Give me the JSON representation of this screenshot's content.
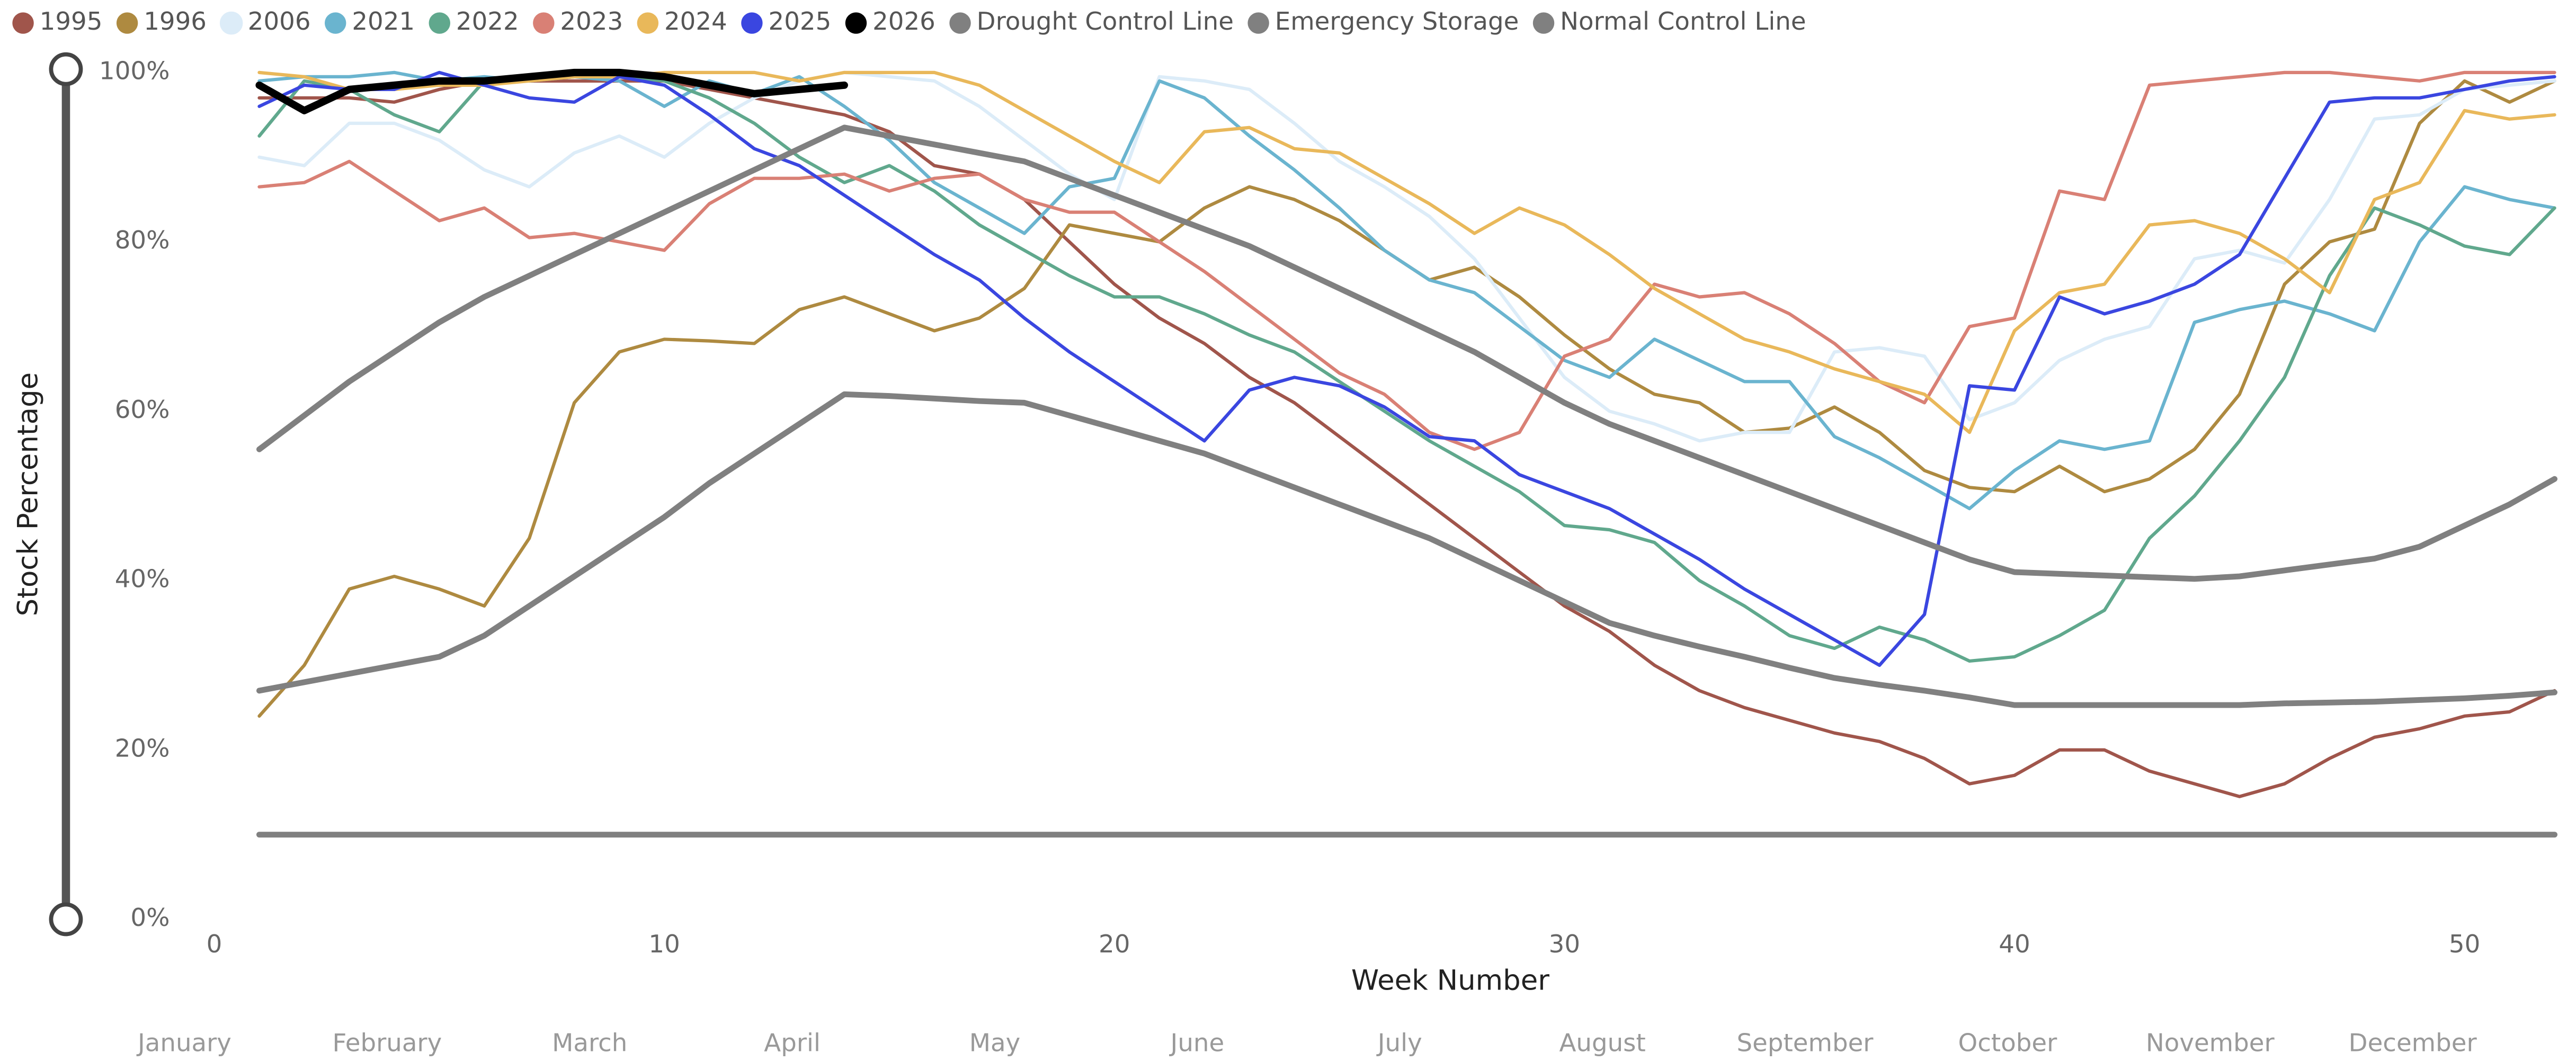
{
  "chart_data": {
    "type": "line",
    "y_axis_title": "Stock Percentage",
    "x_axis_title": "Week Number",
    "x": [
      1,
      2,
      3,
      4,
      5,
      6,
      7,
      8,
      9,
      10,
      11,
      12,
      13,
      14,
      15,
      16,
      17,
      18,
      19,
      20,
      21,
      22,
      23,
      24,
      25,
      26,
      27,
      28,
      29,
      30,
      31,
      32,
      33,
      34,
      35,
      36,
      37,
      38,
      39,
      40,
      41,
      42,
      43,
      44,
      45,
      46,
      47,
      48,
      49,
      50,
      51,
      52
    ],
    "xlim": [
      0,
      52
    ],
    "xticks": [
      0,
      10,
      20,
      30,
      40,
      50
    ],
    "ylim": [
      0,
      100
    ],
    "yticks": [
      {
        "value": 0,
        "label": "0%"
      },
      {
        "value": 20,
        "label": "20%"
      },
      {
        "value": 40,
        "label": "40%"
      },
      {
        "value": 60,
        "label": "60%"
      },
      {
        "value": 80,
        "label": "80%"
      },
      {
        "value": 100,
        "label": "100%"
      }
    ],
    "grid": false,
    "legend_position": "top",
    "month_labels": [
      "January",
      "February",
      "March",
      "April",
      "May",
      "June",
      "July",
      "August",
      "September",
      "October",
      "November",
      "December"
    ],
    "series": [
      {
        "name": "1995",
        "color": "#a0554b",
        "values": [
          97,
          97,
          97,
          96.5,
          98,
          99,
          99,
          99,
          99,
          99,
          98,
          97,
          96,
          95,
          93,
          89,
          88,
          85,
          80,
          75,
          71,
          68,
          64,
          61,
          57,
          53,
          49,
          45,
          41,
          37,
          34,
          30,
          27,
          25,
          23.5,
          22,
          21,
          19,
          16,
          17,
          20,
          20,
          17.5,
          16,
          14.5,
          16,
          19,
          21.5,
          22.5,
          24,
          24.5,
          27
        ]
      },
      {
        "name": "1996",
        "color": "#ae8a40",
        "values": [
          24,
          30,
          39,
          40.5,
          39,
          37,
          45,
          61,
          67,
          68.5,
          68.3,
          68,
          72,
          73.5,
          71.5,
          69.5,
          71,
          74.5,
          82,
          81,
          80,
          84,
          86.5,
          85,
          82.5,
          79,
          75.5,
          77,
          73.5,
          69,
          65,
          62,
          61,
          57.5,
          58,
          60.5,
          57.5,
          53,
          51,
          50.5,
          53.5,
          50.5,
          52,
          55.5,
          62,
          75,
          80,
          81.5,
          94,
          99,
          96.5,
          99
        ]
      },
      {
        "name": "2006",
        "color": "#dcecf8",
        "values": [
          90,
          89,
          94,
          94,
          92,
          88.5,
          86.5,
          90.5,
          92.5,
          90,
          94,
          97,
          99,
          100,
          99.5,
          99,
          96,
          92,
          88,
          85,
          99.5,
          99,
          98,
          94,
          89.5,
          86.5,
          83,
          78,
          71,
          64,
          60,
          58.5,
          56.5,
          57.5,
          57.5,
          67,
          67.5,
          66.5,
          59,
          61,
          66,
          68.5,
          70,
          78,
          79,
          77.5,
          85,
          94.5,
          95,
          98,
          98.5,
          99
        ]
      },
      {
        "name": "2021",
        "color": "#6ab4cf",
        "values": [
          99,
          99.5,
          99.5,
          100,
          99,
          99.5,
          99,
          99.5,
          99,
          96,
          99,
          97.5,
          99.5,
          96,
          92,
          87,
          84,
          81,
          86.5,
          87.5,
          99,
          97,
          92.5,
          88.5,
          84,
          79,
          75.5,
          74,
          70,
          66,
          64,
          68.5,
          66,
          63.5,
          63.5,
          57,
          54.5,
          51.5,
          48.5,
          53,
          56.5,
          55.5,
          56.5,
          70.5,
          72,
          73,
          71.5,
          69.5,
          80,
          86.5,
          85,
          84
        ]
      },
      {
        "name": "2022",
        "color": "#60a88d",
        "values": [
          92.5,
          99,
          98,
          95,
          93,
          99,
          99,
          99.5,
          99.5,
          99,
          97,
          94,
          90,
          87,
          89,
          86,
          82,
          79,
          76,
          73.5,
          73.5,
          71.5,
          69,
          67,
          63.5,
          60,
          56.5,
          53.5,
          50.5,
          46.5,
          46,
          44.5,
          40,
          37,
          33.5,
          32,
          34.5,
          33,
          30.5,
          31,
          33.5,
          36.5,
          45,
          50,
          56.5,
          64,
          76,
          84,
          82,
          79.5,
          78.5,
          84
        ]
      },
      {
        "name": "2023",
        "color": "#d98075",
        "values": [
          86.5,
          87,
          89.5,
          86,
          82.5,
          84,
          80.5,
          81,
          80,
          79,
          84.5,
          87.5,
          87.5,
          88,
          86,
          87.5,
          88,
          85,
          83.5,
          83.5,
          80,
          76.5,
          72.5,
          68.5,
          64.5,
          62,
          57.5,
          55.5,
          57.5,
          66.5,
          68.5,
          75,
          73.5,
          74,
          71.5,
          68,
          63.5,
          61,
          70,
          71,
          86,
          85,
          98.5,
          99,
          99.5,
          100,
          100,
          99.5,
          99,
          100,
          100,
          100
        ]
      },
      {
        "name": "2024",
        "color": "#e9b85a",
        "values": [
          100,
          99.5,
          98,
          98,
          98.5,
          98.5,
          99,
          99.5,
          99.5,
          100,
          100,
          100,
          99,
          100,
          100,
          100,
          98.5,
          95.5,
          92.5,
          89.5,
          87,
          93,
          93.5,
          91,
          90.5,
          87.5,
          84.5,
          81,
          84,
          82,
          78.5,
          74.5,
          71.5,
          68.5,
          67,
          65,
          63.5,
          62,
          57.5,
          69.5,
          74,
          75,
          82,
          82.5,
          81,
          78,
          74,
          85,
          87,
          95.5,
          94.5,
          95
        ]
      },
      {
        "name": "2025",
        "color": "#3a46e0",
        "values": [
          96,
          98.5,
          98,
          98,
          100,
          98.5,
          97,
          96.5,
          99.5,
          98.5,
          95,
          91,
          89,
          85.5,
          82,
          78.5,
          75.5,
          71,
          67,
          63.5,
          60,
          56.5,
          62.5,
          64,
          63,
          60.5,
          57,
          56.5,
          52.5,
          50.5,
          48.5,
          45.5,
          42.5,
          39,
          36,
          33,
          30,
          36,
          63,
          62.5,
          73.5,
          71.5,
          73,
          75,
          78.5,
          87.5,
          96.5,
          97,
          97,
          98,
          99,
          99.5
        ]
      },
      {
        "name": "2026",
        "color": "#000000",
        "values": [
          98.5,
          95.5,
          98,
          98.5,
          99,
          99,
          99.5,
          100,
          100,
          99.5,
          98.5,
          97.5,
          98,
          98.5,
          null,
          null,
          null,
          null,
          null,
          null,
          null,
          null,
          null,
          null,
          null,
          null,
          null,
          null,
          null,
          null,
          null,
          null,
          null,
          null,
          null,
          null,
          null,
          null,
          null,
          null,
          null,
          null,
          null,
          null,
          null,
          null,
          null,
          null,
          null,
          null,
          null,
          null
        ]
      },
      {
        "name": "Drought Control Line",
        "color": "#808080",
        "values": [
          27,
          28,
          29,
          30,
          31,
          33.5,
          37,
          40.5,
          44,
          47.5,
          51.5,
          55,
          58.5,
          62,
          61.8,
          61.5,
          61.2,
          61,
          59.5,
          58,
          56.5,
          55,
          53,
          51,
          49,
          47,
          45,
          42.5,
          40,
          37.5,
          35,
          33.5,
          32.2,
          31,
          29.7,
          28.5,
          27.7,
          27,
          26.2,
          25.3,
          25.3,
          25.3,
          25.3,
          25.3,
          25.3,
          25.5,
          25.6,
          25.7,
          25.9,
          26.1,
          26.4,
          26.8
        ]
      },
      {
        "name": "Emergency Storage",
        "color": "#808080",
        "values": [
          10,
          10,
          10,
          10,
          10,
          10,
          10,
          10,
          10,
          10,
          10,
          10,
          10,
          10,
          10,
          10,
          10,
          10,
          10,
          10,
          10,
          10,
          10,
          10,
          10,
          10,
          10,
          10,
          10,
          10,
          10,
          10,
          10,
          10,
          10,
          10,
          10,
          10,
          10,
          10,
          10,
          10,
          10,
          10,
          10,
          10,
          10,
          10,
          10,
          10,
          10,
          10
        ]
      },
      {
        "name": "Normal Control Line",
        "color": "#808080",
        "values": [
          55.5,
          59.5,
          63.5,
          67,
          70.5,
          73.5,
          76,
          78.5,
          81,
          83.5,
          86,
          88.5,
          91,
          93.5,
          92.5,
          91.5,
          90.5,
          89.5,
          87.5,
          85.5,
          83.5,
          81.5,
          79.5,
          77,
          74.5,
          72,
          69.5,
          67,
          64,
          61,
          58.5,
          56.5,
          54.5,
          52.5,
          50.5,
          48.5,
          46.5,
          44.5,
          42.5,
          41,
          40.8,
          40.6,
          40.4,
          40.2,
          40.5,
          41.2,
          41.9,
          42.6,
          44,
          46.5,
          49,
          52
        ]
      }
    ]
  }
}
